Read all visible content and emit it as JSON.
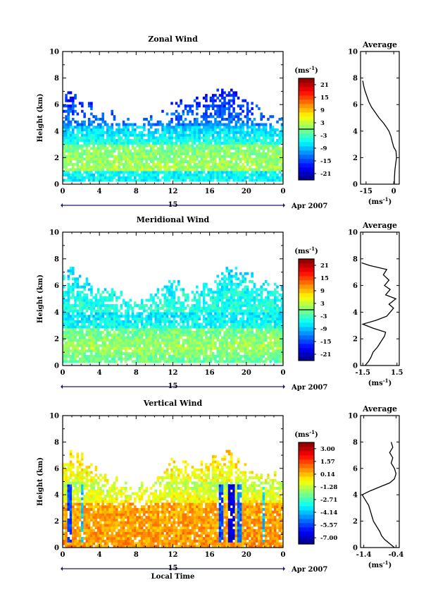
{
  "chart_data": [
    {
      "type": "heatmap",
      "id": "zonal",
      "title": "Zonal Wind",
      "ylabel": "Height (km)",
      "xlabel": "",
      "x_ticks": [
        "0",
        "4",
        "8",
        "12",
        "16",
        "20",
        "0"
      ],
      "xlim": [
        0,
        24
      ],
      "y_ticks": [
        "0",
        "2",
        "4",
        "6",
        "8",
        "10"
      ],
      "ylim": [
        0,
        10
      ],
      "date_day": "15",
      "date_label": "Apr 2007",
      "colorbar": {
        "unit_base": "(ms",
        "unit_exp": "-1",
        "unit_close": ")",
        "ticks": [
          "21",
          "15",
          "9",
          "3",
          "-3",
          "-9",
          "-15",
          "-21"
        ],
        "range": [
          -24,
          24
        ],
        "zero_line": 0
      },
      "average": {
        "title": "Average",
        "x_ticks": [
          "-15",
          "0"
        ],
        "xlim": [
          -18,
          3
        ],
        "y_ticks": [
          "0",
          "2",
          "4",
          "6",
          "8",
          "10"
        ],
        "ylim": [
          0,
          10
        ],
        "xlabel_base": "(ms",
        "xlabel_exp": "-1",
        "xlabel_close": ")",
        "profile": [
          {
            "z": 0.0,
            "v": 0.3
          },
          {
            "z": 0.5,
            "v": 0.4
          },
          {
            "z": 1.0,
            "v": 0.6
          },
          {
            "z": 1.5,
            "v": 1.0
          },
          {
            "z": 2.0,
            "v": 1.5
          },
          {
            "z": 2.5,
            "v": 1.2
          },
          {
            "z": 2.8,
            "v": 0.0
          },
          {
            "z": 3.2,
            "v": -0.8
          },
          {
            "z": 3.6,
            "v": -1.5
          },
          {
            "z": 4.0,
            "v": -2.6
          },
          {
            "z": 4.3,
            "v": -4.0
          },
          {
            "z": 4.6,
            "v": -5.5
          },
          {
            "z": 5.0,
            "v": -8.0
          },
          {
            "z": 5.4,
            "v": -10.0
          },
          {
            "z": 5.8,
            "v": -12.0
          },
          {
            "z": 6.2,
            "v": -13.5
          },
          {
            "z": 6.6,
            "v": -14.5
          },
          {
            "z": 7.0,
            "v": -15.5
          },
          {
            "z": 7.4,
            "v": -16.3
          },
          {
            "z": 7.8,
            "v": -16.8
          }
        ]
      },
      "field": {
        "t_step": 0.25,
        "z_step": 0.2,
        "fill_top": [
          [
            0,
            6.0
          ],
          [
            1,
            7.1
          ],
          [
            2,
            6.0
          ],
          [
            4,
            5.8
          ],
          [
            6,
            5.0
          ],
          [
            8,
            4.8
          ],
          [
            10,
            5.2
          ],
          [
            12,
            6.0
          ],
          [
            14,
            6.2
          ],
          [
            16,
            6.5
          ],
          [
            18,
            7.2
          ],
          [
            20,
            6.0
          ],
          [
            22,
            5.5
          ],
          [
            24,
            5.0
          ]
        ],
        "fill_base": [
          [
            0,
            0.2
          ],
          [
            24,
            0.2
          ]
        ],
        "layers": [
          {
            "z0": 0.0,
            "z1": 1.0,
            "v0": -6,
            "v1": -6
          },
          {
            "z0": 1.0,
            "z1": 3.0,
            "v0": 2,
            "v1": 0
          },
          {
            "z0": 3.0,
            "z1": 4.5,
            "v0": -4,
            "v1": -9
          },
          {
            "z0": 4.5,
            "z1": 8.0,
            "v0": -12,
            "v1": -20
          }
        ]
      }
    },
    {
      "type": "heatmap",
      "id": "meridional",
      "title": "Meridional Wind",
      "ylabel": "Height (km)",
      "xlabel": "",
      "x_ticks": [
        "0",
        "4",
        "8",
        "12",
        "16",
        "20",
        "0"
      ],
      "xlim": [
        0,
        24
      ],
      "y_ticks": [
        "0",
        "2",
        "4",
        "6",
        "8",
        "10"
      ],
      "ylim": [
        0,
        10
      ],
      "date_day": "15",
      "date_label": "Apr 2007",
      "colorbar": {
        "unit_base": "(ms",
        "unit_exp": "-1",
        "unit_close": ")",
        "ticks": [
          "21",
          "15",
          "9",
          "3",
          "-3",
          "-9",
          "-15",
          "-21"
        ],
        "range": [
          -24,
          24
        ],
        "zero_line": 0
      },
      "average": {
        "title": "Average",
        "x_ticks": [
          "-1.5",
          "1.5"
        ],
        "xlim": [
          -1.7,
          1.7
        ],
        "y_ticks": [
          "0",
          "2",
          "4",
          "6",
          "8",
          "10"
        ],
        "ylim": [
          0,
          10
        ],
        "xlabel_base": "(ms",
        "xlabel_exp": "-1",
        "xlabel_close": ")",
        "profile": [
          {
            "z": 0.0,
            "v": -1.3
          },
          {
            "z": 0.3,
            "v": -1.0
          },
          {
            "z": 0.6,
            "v": -0.8
          },
          {
            "z": 1.0,
            "v": -0.6
          },
          {
            "z": 1.4,
            "v": -0.2
          },
          {
            "z": 1.8,
            "v": 0.1
          },
          {
            "z": 2.2,
            "v": 0.4
          },
          {
            "z": 2.5,
            "v": 0.5
          },
          {
            "z": 2.8,
            "v": -0.6
          },
          {
            "z": 3.1,
            "v": -1.5
          },
          {
            "z": 3.4,
            "v": -0.3
          },
          {
            "z": 3.7,
            "v": 0.6
          },
          {
            "z": 4.0,
            "v": 0.9
          },
          {
            "z": 4.3,
            "v": 1.2
          },
          {
            "z": 4.6,
            "v": 0.8
          },
          {
            "z": 5.0,
            "v": 1.4
          },
          {
            "z": 5.3,
            "v": 0.5
          },
          {
            "z": 5.7,
            "v": 0.9
          },
          {
            "z": 6.0,
            "v": 0.4
          },
          {
            "z": 6.4,
            "v": 0.8
          },
          {
            "z": 6.8,
            "v": 0.3
          },
          {
            "z": 7.2,
            "v": 0.6
          },
          {
            "z": 7.5,
            "v": -0.9
          },
          {
            "z": 7.7,
            "v": -1.6
          }
        ]
      },
      "field": {
        "t_step": 0.25,
        "z_step": 0.2,
        "fill_top": [
          [
            0,
            6.5
          ],
          [
            1,
            7.2
          ],
          [
            3,
            6.0
          ],
          [
            6,
            5.5
          ],
          [
            8,
            5.0
          ],
          [
            10,
            5.5
          ],
          [
            12,
            6.5
          ],
          [
            14,
            5.5
          ],
          [
            16,
            6.2
          ],
          [
            18,
            7.5
          ],
          [
            20,
            6.8
          ],
          [
            22,
            6.0
          ],
          [
            24,
            5.8
          ]
        ],
        "fill_base": [
          [
            0,
            0.3
          ],
          [
            24,
            0.3
          ]
        ],
        "layers": [
          {
            "z0": 0.0,
            "z1": 1.2,
            "v0": -2,
            "v1": 1
          },
          {
            "z0": 1.2,
            "z1": 2.8,
            "v0": 2,
            "v1": -1
          },
          {
            "z0": 2.8,
            "z1": 4.0,
            "v0": -5,
            "v1": -7
          },
          {
            "z0": 4.0,
            "z1": 8.0,
            "v0": -4,
            "v1": -8
          }
        ]
      }
    },
    {
      "type": "heatmap",
      "id": "vertical",
      "title": "Vertical Wind",
      "ylabel": "Height (km)",
      "xlabel": "Local Time",
      "x_ticks": [
        "0",
        "4",
        "8",
        "12",
        "16",
        "20",
        "0"
      ],
      "xlim": [
        0,
        24
      ],
      "y_ticks": [
        "0",
        "2",
        "4",
        "6",
        "8",
        "10"
      ],
      "ylim": [
        0,
        10
      ],
      "date_day": "15",
      "date_label": "Apr 2007",
      "colorbar": {
        "unit_base": "(ms",
        "unit_exp": "-1",
        "unit_close": ")",
        "ticks": [
          "3.00",
          "1.57",
          "0.14",
          "-1.28",
          "-2.71",
          "-4.14",
          "-5.57",
          "-7.00"
        ],
        "range": [
          -7.7,
          3.7
        ],
        "zero_line": null
      },
      "average": {
        "title": "Average",
        "x_ticks": [
          "-1.4",
          "-0.4"
        ],
        "xlim": [
          -1.5,
          -0.3
        ],
        "y_ticks": [
          "0",
          "2",
          "4",
          "6",
          "8",
          "10"
        ],
        "ylim": [
          0,
          10
        ],
        "xlabel_base": "(ms",
        "xlabel_exp": "-1",
        "xlabel_close": ")",
        "profile": [
          {
            "z": 0.0,
            "v": -0.45
          },
          {
            "z": 0.3,
            "v": -0.6
          },
          {
            "z": 0.6,
            "v": -0.75
          },
          {
            "z": 0.9,
            "v": -0.85
          },
          {
            "z": 1.2,
            "v": -0.9
          },
          {
            "z": 1.6,
            "v": -1.0
          },
          {
            "z": 2.0,
            "v": -1.1
          },
          {
            "z": 2.4,
            "v": -1.15
          },
          {
            "z": 2.8,
            "v": -1.2
          },
          {
            "z": 3.2,
            "v": -1.25
          },
          {
            "z": 3.6,
            "v": -1.35
          },
          {
            "z": 4.0,
            "v": -1.45
          },
          {
            "z": 4.3,
            "v": -1.2
          },
          {
            "z": 4.6,
            "v": -0.9
          },
          {
            "z": 4.9,
            "v": -0.6
          },
          {
            "z": 5.2,
            "v": -0.45
          },
          {
            "z": 5.6,
            "v": -0.4
          },
          {
            "z": 6.0,
            "v": -0.45
          },
          {
            "z": 6.4,
            "v": -0.55
          },
          {
            "z": 6.8,
            "v": -0.5
          },
          {
            "z": 7.2,
            "v": -0.6
          },
          {
            "z": 7.6,
            "v": -0.5
          },
          {
            "z": 8.0,
            "v": -0.55
          }
        ]
      },
      "field": {
        "t_step": 0.25,
        "z_step": 0.2,
        "fill_top": [
          [
            0,
            6.0
          ],
          [
            1,
            7.2
          ],
          [
            3,
            6.5
          ],
          [
            6,
            5.0
          ],
          [
            8,
            4.5
          ],
          [
            10,
            5.0
          ],
          [
            12,
            6.5
          ],
          [
            14,
            6.0
          ],
          [
            16,
            6.5
          ],
          [
            18,
            7.2
          ],
          [
            20,
            6.0
          ],
          [
            22,
            5.5
          ],
          [
            24,
            5.2
          ]
        ],
        "fill_base": [
          [
            0,
            0.0
          ],
          [
            24,
            0.0
          ]
        ],
        "layers": [
          {
            "z0": 0.0,
            "z1": 3.5,
            "v0": 0.6,
            "v1": 0.4
          },
          {
            "z0": 3.5,
            "z1": 5.0,
            "v0": -0.5,
            "v1": -1.5
          },
          {
            "z0": 5.0,
            "z1": 8.0,
            "v0": -0.8,
            "v1": 0.2
          }
        ],
        "columns": [
          {
            "t": 0.7,
            "w": 0.5,
            "v": -5.5
          },
          {
            "t": 2.1,
            "w": 0.3,
            "v": -4.0
          },
          {
            "t": 17.2,
            "w": 0.6,
            "v": -5.5
          },
          {
            "t": 18.4,
            "w": 0.7,
            "v": -6.8
          },
          {
            "t": 19.2,
            "w": 0.4,
            "v": -5.0
          },
          {
            "t": 21.8,
            "w": 0.3,
            "v": -4.0
          }
        ]
      }
    }
  ]
}
